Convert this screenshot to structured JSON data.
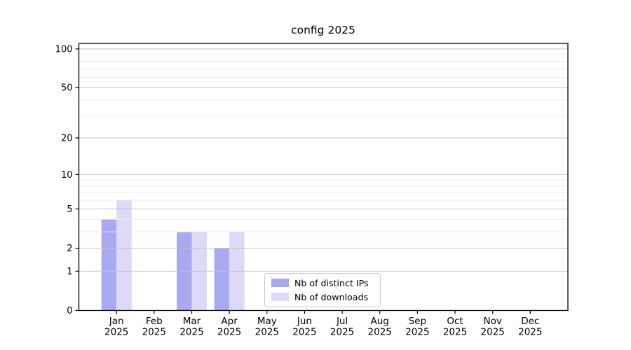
{
  "chart_data": {
    "type": "bar",
    "title": "config 2025",
    "categories": [
      {
        "month": "Jan",
        "year": "2025"
      },
      {
        "month": "Feb",
        "year": "2025"
      },
      {
        "month": "Mar",
        "year": "2025"
      },
      {
        "month": "Apr",
        "year": "2025"
      },
      {
        "month": "May",
        "year": "2025"
      },
      {
        "month": "Jun",
        "year": "2025"
      },
      {
        "month": "Jul",
        "year": "2025"
      },
      {
        "month": "Aug",
        "year": "2025"
      },
      {
        "month": "Sep",
        "year": "2025"
      },
      {
        "month": "Oct",
        "year": "2025"
      },
      {
        "month": "Nov",
        "year": "2025"
      },
      {
        "month": "Dec",
        "year": "2025"
      }
    ],
    "series": [
      {
        "name": "Nb of distinct IPs",
        "color": "#a9a9f2",
        "values": [
          4,
          0,
          3,
          2,
          0,
          0,
          0,
          0,
          0,
          0,
          0,
          0
        ]
      },
      {
        "name": "Nb of downloads",
        "color": "#dbdbf7",
        "values": [
          6,
          0,
          3,
          3,
          0,
          0,
          0,
          0,
          0,
          0,
          0,
          0
        ]
      }
    ],
    "xlabel": "",
    "ylabel": "",
    "y_scale": "log10(1+v)",
    "y_ticks": [
      0,
      1,
      2,
      5,
      10,
      20,
      50,
      100
    ],
    "y_minor_gridlines": [
      3,
      4,
      6,
      7,
      8,
      9,
      30,
      40,
      60,
      70,
      80,
      90
    ],
    "ylim": [
      0,
      111
    ],
    "grid": "on",
    "legend_position": "lower center inside plot",
    "styles": {
      "grid_major_color": "#c4c4c4",
      "grid_minor_color": "#ebebeb",
      "spine_color": "#000000",
      "tick_label_color": "#000000",
      "background": "#ffffff"
    }
  }
}
